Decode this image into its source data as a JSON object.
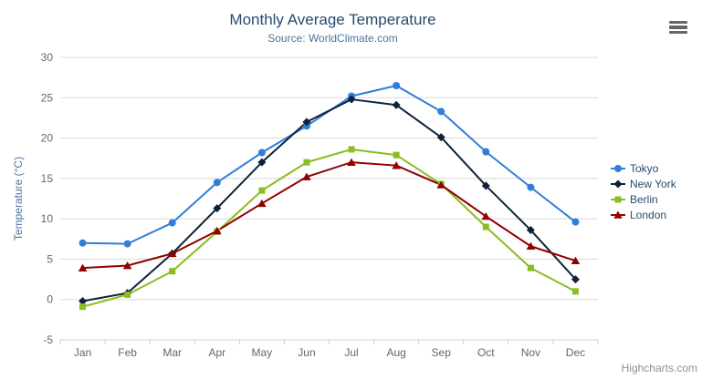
{
  "header": {
    "title": "Monthly Average Temperature",
    "subtitle": "Source: WorldClimate.com"
  },
  "credits": {
    "label": "Highcharts.com"
  },
  "context_menu": {
    "icon": "hamburger-icon"
  },
  "palette": {
    "background": "#ffffff",
    "title_color": "#274b6d",
    "subtitle_color": "#4d759e",
    "axis_title_color": "#4d759e",
    "tick_label_color": "#666666",
    "grid_color": "#d8d8d8",
    "axis_line_color": "#c0d0e0",
    "legend_text_color": "#274b6d",
    "credit_color": "#8f8f8f",
    "menu_icon_color": "#666666"
  },
  "chart_data": {
    "type": "line",
    "title": "Monthly Average Temperature",
    "subtitle": "Source: WorldClimate.com",
    "xlabel": "",
    "ylabel": "Temperature (°C)",
    "categories": [
      "Jan",
      "Feb",
      "Mar",
      "Apr",
      "May",
      "Jun",
      "Jul",
      "Aug",
      "Sep",
      "Oct",
      "Nov",
      "Dec"
    ],
    "ylim": [
      -5,
      30
    ],
    "yticks": [
      -5,
      0,
      5,
      10,
      15,
      20,
      25,
      30
    ],
    "grid": true,
    "legend_position": "right",
    "series": [
      {
        "name": "Tokyo",
        "color": "#2f7ed8",
        "marker": "circle",
        "values": [
          7.0,
          6.9,
          9.5,
          14.5,
          18.2,
          21.5,
          25.2,
          26.5,
          23.3,
          18.3,
          13.9,
          9.6
        ]
      },
      {
        "name": "New York",
        "color": "#0d233a",
        "marker": "diamond",
        "values": [
          -0.2,
          0.8,
          5.7,
          11.3,
          17.0,
          22.0,
          24.8,
          24.1,
          20.1,
          14.1,
          8.6,
          2.5
        ]
      },
      {
        "name": "Berlin",
        "color": "#8bbc21",
        "marker": "square",
        "values": [
          -0.9,
          0.6,
          3.5,
          8.4,
          13.5,
          17.0,
          18.6,
          17.9,
          14.3,
          9.0,
          3.9,
          1.0
        ]
      },
      {
        "name": "London",
        "color": "#910000",
        "marker": "triangle",
        "values": [
          3.9,
          4.2,
          5.7,
          8.5,
          11.9,
          15.2,
          17.0,
          16.6,
          14.2,
          10.3,
          6.6,
          4.8
        ]
      }
    ]
  }
}
